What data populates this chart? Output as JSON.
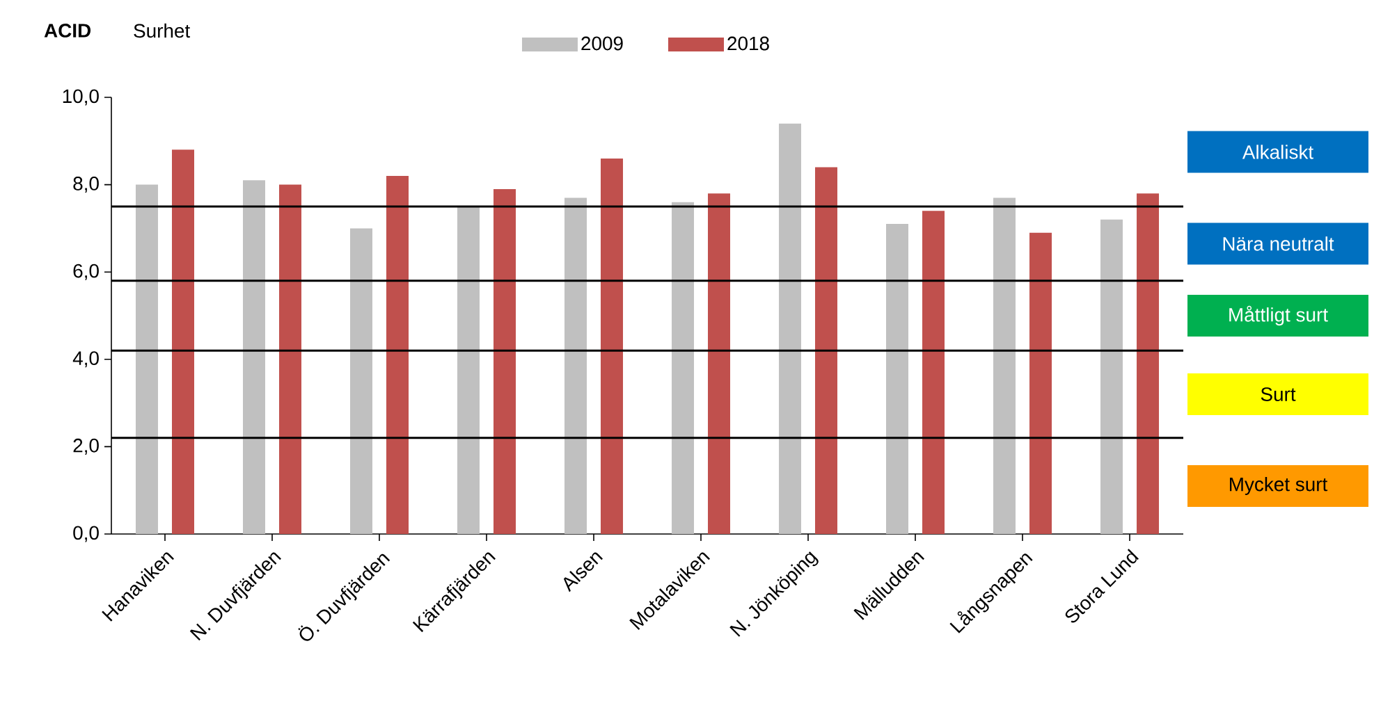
{
  "chart_data": {
    "type": "bar",
    "title": "ACID",
    "subtitle": "Surhet",
    "categories": [
      "Hanaviken",
      "N. Duvfjärden",
      "Ö. Duvfjärden",
      "Kärrafjärden",
      "Alsen",
      "Motalaviken",
      "N. Jönköping",
      "Mälludden",
      "Långsnapen",
      "Stora Lund"
    ],
    "series": [
      {
        "name": "2009",
        "color": "#c0c0c0",
        "values": [
          8.0,
          8.1,
          7.0,
          7.5,
          7.7,
          7.6,
          9.4,
          7.1,
          7.7,
          7.2
        ]
      },
      {
        "name": "2018",
        "color": "#c0504d",
        "values": [
          8.8,
          8.0,
          8.2,
          7.9,
          8.6,
          7.8,
          8.4,
          7.4,
          6.9,
          7.8
        ]
      }
    ],
    "ylim": [
      0,
      10
    ],
    "yticks": [
      {
        "value": 0,
        "label": "0,0"
      },
      {
        "value": 2,
        "label": "2,0"
      },
      {
        "value": 4,
        "label": "4,0"
      },
      {
        "value": 6,
        "label": "6,0"
      },
      {
        "value": 8,
        "label": "8,0"
      },
      {
        "value": 10,
        "label": "10,0"
      }
    ],
    "ref_lines": [
      {
        "axis": "y",
        "value": 7.5,
        "color": "#000000"
      },
      {
        "axis": "y",
        "value": 5.8,
        "color": "#000000"
      },
      {
        "axis": "y",
        "value": 4.2,
        "color": "#000000"
      },
      {
        "axis": "y",
        "value": 2.2,
        "color": "#000000"
      }
    ],
    "annotations": [
      "Alkaliskt",
      "Nära neutralt",
      "Måttligt surt",
      "Surt",
      "Mycket surt"
    ],
    "grid": false,
    "legend": "top"
  }
}
